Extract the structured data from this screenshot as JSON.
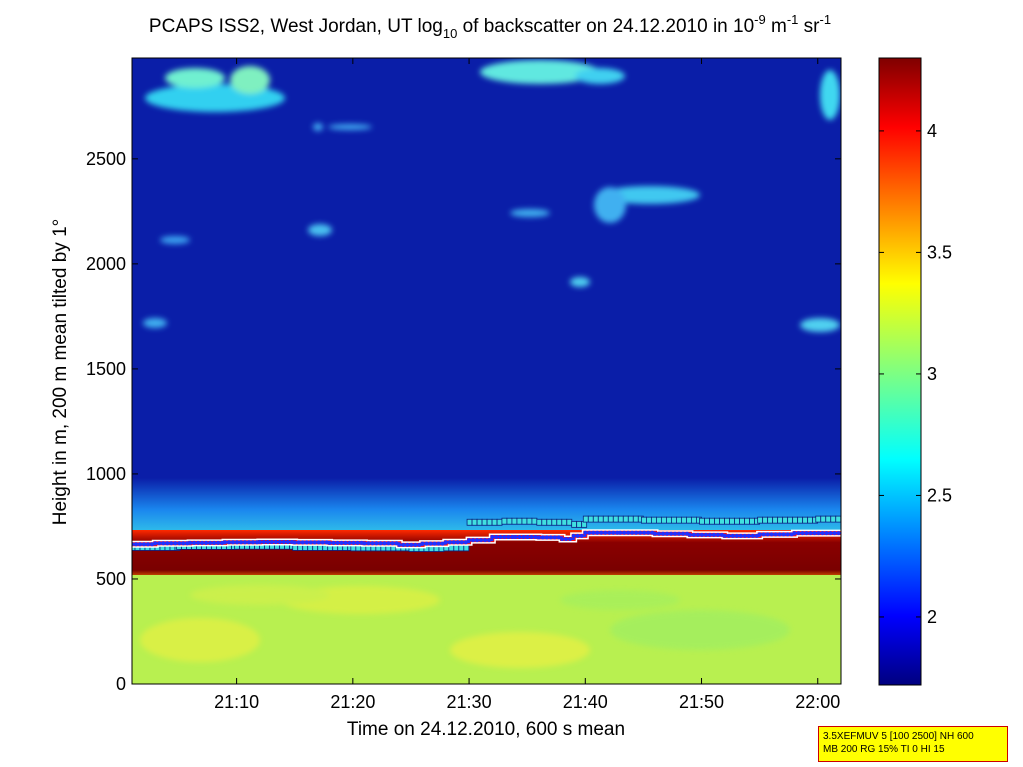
{
  "chart_data": {
    "type": "heatmap",
    "title": "PCAPS ISS2, West Jordan, UT log",
    "title_sub": "10",
    "title_mid": " of backscatter on 24.12.2010 in 10",
    "title_sup1": "-9",
    "title_unit_m": " m",
    "title_sup2": "-1",
    "title_unit_sr": " sr",
    "title_sup3": "-1",
    "xlabel": "Time on 24.12.2010, 600 s mean",
    "ylabel": "Height in m, 200 m mean tilted by 1°",
    "x_ticks": [
      "21:10",
      "21:20",
      "21:30",
      "21:40",
      "21:50",
      "22:00"
    ],
    "x_tick_minutes": [
      10,
      20,
      30,
      40,
      50,
      60
    ],
    "xlim_minutes": [
      1,
      62
    ],
    "y_ticks": [
      "0",
      "500",
      "1000",
      "1500",
      "2000",
      "2500"
    ],
    "y_tick_values": [
      0,
      500,
      1000,
      1500,
      2000,
      2500
    ],
    "ylim": [
      0,
      2980
    ],
    "colorbar": {
      "ticks": [
        "2",
        "2.5",
        "3",
        "3.5",
        "4"
      ],
      "tick_values": [
        2,
        2.5,
        3,
        3.5,
        4
      ],
      "range": [
        1.72,
        4.3
      ],
      "colormap": "jet"
    },
    "layers": [
      {
        "name": "surface",
        "from": 0,
        "to": 540,
        "value": 3.05
      },
      {
        "name": "strong-band",
        "from": 540,
        "to": 720,
        "value": 4.25
      },
      {
        "name": "upper-moist",
        "from": 720,
        "to": 900,
        "value": 2.55
      },
      {
        "name": "clear-sky",
        "from": 900,
        "to": 2980,
        "value": 1.8
      }
    ],
    "series": [
      {
        "x": [
          1,
          3,
          6,
          9,
          12,
          15,
          18,
          21,
          24,
          26,
          28,
          30,
          32,
          34,
          36,
          38,
          39,
          40,
          43,
          46,
          49,
          52,
          55,
          58,
          62
        ],
        "y": [
          665,
          670,
          672,
          675,
          676,
          674,
          672,
          670,
          662,
          668,
          675,
          685,
          700,
          700,
          698,
          690,
          705,
          720,
          720,
          715,
          710,
          705,
          712,
          718,
          715
        ]
      },
      {
        "x": [
          1,
          5,
          10,
          15,
          20,
          25,
          28,
          30,
          33,
          36,
          39,
          40,
          45,
          50,
          55,
          60,
          62
        ],
        "y": [
          650,
          655,
          656,
          650,
          648,
          645,
          648,
          770,
          775,
          770,
          760,
          785,
          780,
          775,
          780,
          785,
          775
        ]
      }
    ]
  },
  "info_box": {
    "line1": "3.5XEFMUV 5 [100 2500] NH 600",
    "line2": "MB 200 RG 15% TI 0 HI 15"
  }
}
